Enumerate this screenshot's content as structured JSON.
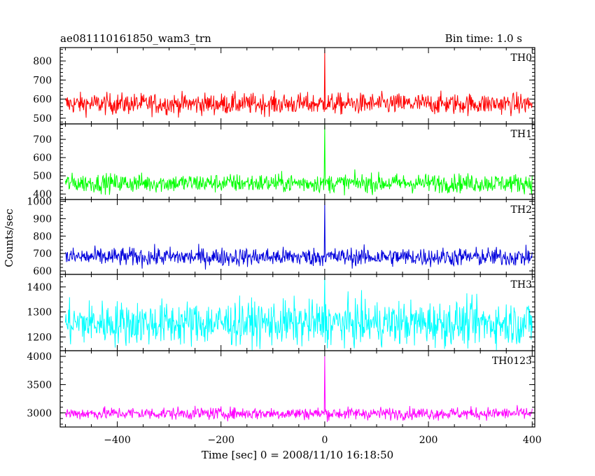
{
  "header": {
    "left_title": "ae081110161850_wam3_trn",
    "right_title": "Bin time: 1.0 s"
  },
  "ylabel": "Counts/sec",
  "xlabel": "Time [sec] 0 = 2008/11/10 16:18:50",
  "chart_data": {
    "type": "line",
    "x_range": [
      -510,
      405
    ],
    "x_ticks": [
      -400,
      -200,
      0,
      200,
      400
    ],
    "x_tick_labels": [
      "−400",
      "−200",
      "0",
      "200",
      "400"
    ],
    "bin_time": 1.0,
    "x_start": -500,
    "x_end": 400,
    "grid": false,
    "panels": [
      {
        "name": "TH0",
        "color": "#ff0000",
        "ylim": [
          470,
          870
        ],
        "yticks": [
          500,
          600,
          700,
          800
        ],
        "mean": 575,
        "noise": 28,
        "burst_peak": 860,
        "burst_time": 0
      },
      {
        "name": "TH1",
        "color": "#00ff00",
        "ylim": [
          370,
          785
        ],
        "yticks": [
          400,
          500,
          600,
          700
        ],
        "mean": 460,
        "noise": 26,
        "burst_peak": 780,
        "burst_time": 0
      },
      {
        "name": "TH2",
        "color": "#0000dd",
        "ylim": [
          580,
          1010
        ],
        "yticks": [
          600,
          700,
          800,
          900,
          1000
        ],
        "mean": 680,
        "noise": 27,
        "burst_peak": 1000,
        "burst_time": 0
      },
      {
        "name": "TH3",
        "color": "#00ffff",
        "ylim": [
          1145,
          1450
        ],
        "yticks": [
          1200,
          1300,
          1400
        ],
        "mean": 1255,
        "noise": 45,
        "burst_peak": 1440,
        "burst_time": 0
      },
      {
        "name": "TH0123",
        "color": "#ff00ff",
        "ylim": [
          2750,
          4100
        ],
        "yticks": [
          3000,
          3500,
          4000
        ],
        "mean": 2990,
        "noise": 55,
        "burst_peak": 4000,
        "burst_time": 0
      }
    ]
  }
}
